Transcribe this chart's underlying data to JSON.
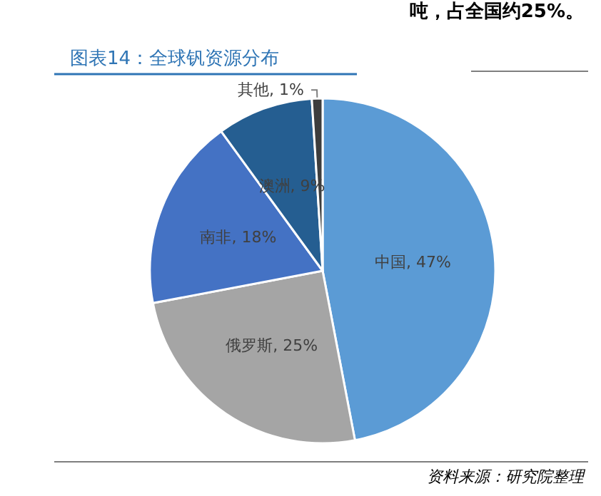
{
  "chart_data": {
    "type": "pie",
    "title": "图表14：全球钒资源分布",
    "categories": [
      "中国",
      "俄罗斯",
      "南非",
      "澳洲",
      "其他"
    ],
    "values": [
      47,
      25,
      18,
      9,
      1
    ],
    "colors": [
      "#5b9bd5",
      "#a5a5a5",
      "#4472c4",
      "#255e91",
      "#3d3d3d"
    ],
    "value_labels": [
      ", 47%",
      ", 25%",
      ", 18%",
      ", 9%",
      ", 1%"
    ],
    "legend": false,
    "annotations": [
      "吨，占全国约25%。",
      "资料来源：研究院整理"
    ]
  }
}
